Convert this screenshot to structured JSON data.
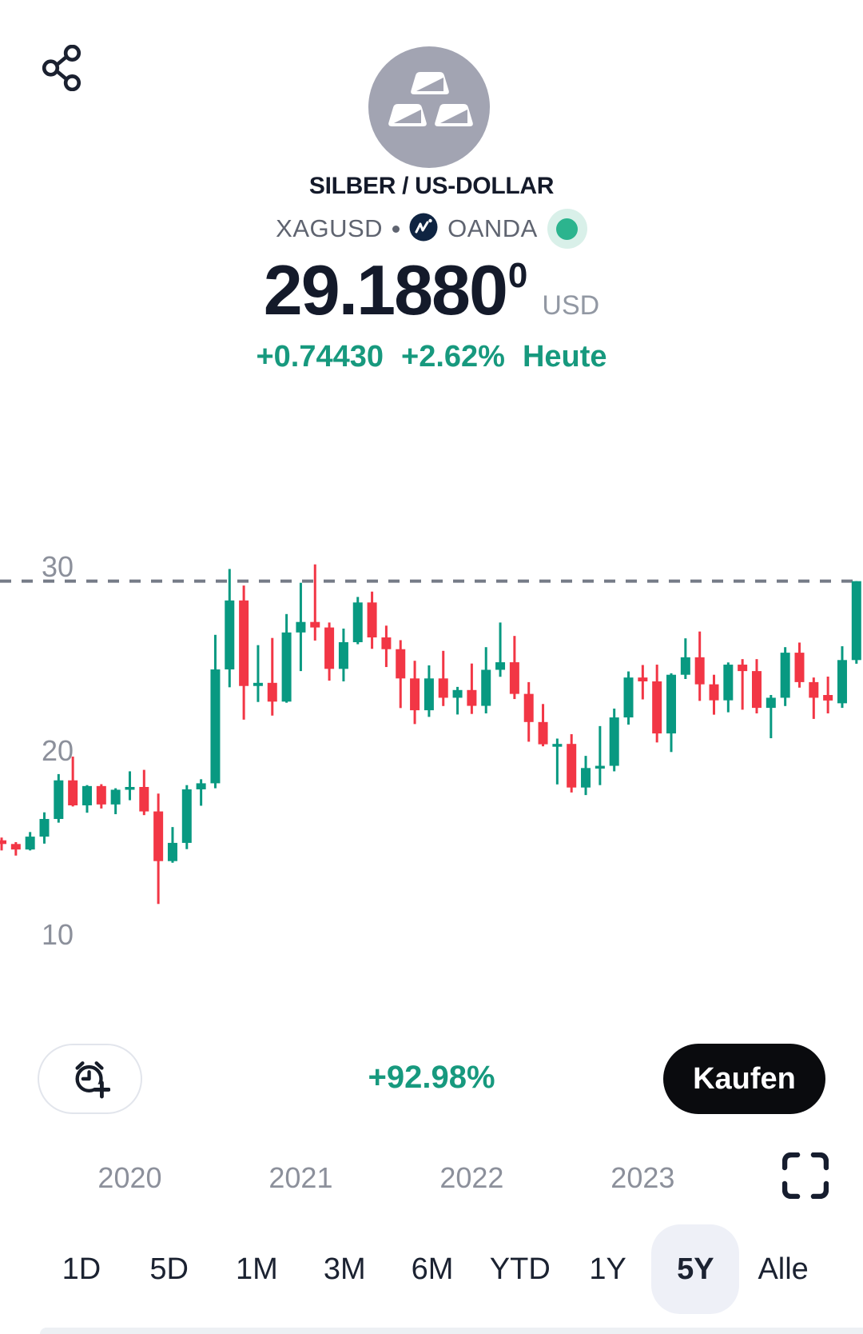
{
  "header": {
    "title": "SILBER / US-DOLLAR",
    "symbol": "XAGUSD",
    "separator": "•",
    "exchange": "OANDA",
    "price": "29.1880",
    "price_superscript": "0",
    "currency": "USD",
    "change_abs": "+0.74430",
    "change_pct": "+2.62%",
    "change_period": "Heute",
    "icons": {
      "share": "share-icon",
      "avatar": "silver-bars-icon",
      "exchange_logo": "oanda-logo-icon",
      "market_status": "market-open-dot"
    },
    "colors": {
      "title": "#141a2a",
      "symbol_gray": "#5f6470",
      "teal": "#17997e",
      "status_inner": "#2cb48e",
      "status_ring": "#d9f0e9",
      "avatar_bg": "#a2a4b2",
      "oanda_navy": "#0f2442"
    }
  },
  "chart_data": {
    "type": "candlestick",
    "title": "XAGUSD 5Y monthly candles",
    "ylabel": "",
    "xlabel": "",
    "y_axis_ticks": [
      30,
      20,
      10
    ],
    "ylim": [
      10,
      31
    ],
    "grid": "price-line-only",
    "price_line": 29.188,
    "colors": {
      "up": "#089981",
      "down": "#f23645",
      "axis_text": "#8c909b",
      "price_line": "#757b87"
    },
    "x_year_ticks": [
      {
        "label": "2020",
        "month_index": 9
      },
      {
        "label": "2021",
        "month_index": 21
      },
      {
        "label": "2022",
        "month_index": 33
      },
      {
        "label": "2023",
        "month_index": 45
      }
    ],
    "columns": [
      "month",
      "open",
      "high",
      "low",
      "close"
    ],
    "candles": [
      [
        "2019-04",
        15.1,
        15.25,
        14.55,
        14.9
      ],
      [
        "2019-05",
        14.9,
        15.0,
        14.27,
        14.6
      ],
      [
        "2019-06",
        14.6,
        15.55,
        14.55,
        15.3
      ],
      [
        "2019-07",
        15.3,
        16.62,
        14.92,
        16.26
      ],
      [
        "2019-08",
        16.26,
        18.7,
        16.06,
        18.36
      ],
      [
        "2019-09",
        18.36,
        19.65,
        16.94,
        17.0
      ],
      [
        "2019-10",
        17.0,
        18.1,
        16.6,
        18.05
      ],
      [
        "2019-11",
        18.05,
        18.15,
        16.83,
        17.05
      ],
      [
        "2019-12",
        17.05,
        17.93,
        16.52,
        17.85
      ],
      [
        "2020-01",
        17.85,
        18.85,
        17.28,
        18.0
      ],
      [
        "2020-02",
        18.0,
        18.93,
        16.47,
        16.67
      ],
      [
        "2020-03",
        16.67,
        17.64,
        11.64,
        13.97
      ],
      [
        "2020-04",
        13.97,
        15.82,
        13.88,
        14.96
      ],
      [
        "2020-05",
        14.96,
        18.1,
        14.62,
        17.87
      ],
      [
        "2020-06",
        17.87,
        18.42,
        16.98,
        18.2
      ],
      [
        "2020-07",
        18.2,
        26.27,
        17.93,
        24.39
      ],
      [
        "2020-08",
        24.39,
        29.85,
        23.42,
        28.14
      ],
      [
        "2020-09",
        28.14,
        28.95,
        21.66,
        23.49
      ],
      [
        "2020-10",
        23.49,
        25.71,
        22.62,
        23.66
      ],
      [
        "2020-11",
        23.66,
        26.1,
        21.88,
        22.64
      ],
      [
        "2020-12",
        22.64,
        27.4,
        22.58,
        26.4
      ],
      [
        "2021-01",
        26.4,
        29.1,
        24.3,
        26.97
      ],
      [
        "2021-02",
        26.97,
        30.1,
        25.96,
        26.67
      ],
      [
        "2021-03",
        26.67,
        26.94,
        23.78,
        24.42
      ],
      [
        "2021-04",
        24.42,
        26.61,
        23.74,
        25.87
      ],
      [
        "2021-05",
        25.87,
        28.33,
        25.76,
        28.03
      ],
      [
        "2021-06",
        28.03,
        28.62,
        25.51,
        26.13
      ],
      [
        "2021-07",
        26.13,
        26.77,
        24.52,
        25.49
      ],
      [
        "2021-08",
        25.49,
        25.98,
        22.29,
        23.9
      ],
      [
        "2021-09",
        23.9,
        24.86,
        21.42,
        22.17
      ],
      [
        "2021-10",
        22.17,
        24.61,
        21.81,
        23.9
      ],
      [
        "2021-11",
        23.9,
        25.4,
        22.4,
        22.85
      ],
      [
        "2021-12",
        22.85,
        23.44,
        21.94,
        23.27
      ],
      [
        "2022-01",
        23.27,
        24.71,
        21.97,
        22.41
      ],
      [
        "2022-02",
        22.41,
        25.6,
        22.0,
        24.37
      ],
      [
        "2022-03",
        24.37,
        26.94,
        23.99,
        24.78
      ],
      [
        "2022-04",
        24.78,
        26.21,
        22.78,
        23.06
      ],
      [
        "2022-05",
        23.06,
        23.7,
        20.46,
        21.53
      ],
      [
        "2022-06",
        21.53,
        22.51,
        20.21,
        20.32
      ],
      [
        "2022-07",
        20.32,
        20.63,
        18.14,
        20.34
      ],
      [
        "2022-08",
        20.34,
        20.87,
        17.7,
        17.97
      ],
      [
        "2022-09",
        17.97,
        19.69,
        17.56,
        19.03
      ],
      [
        "2022-10",
        19.03,
        21.31,
        18.1,
        19.15
      ],
      [
        "2022-11",
        19.15,
        22.26,
        18.85,
        21.78
      ],
      [
        "2022-12",
        21.78,
        24.28,
        21.39,
        23.95
      ],
      [
        "2023-01",
        23.95,
        24.63,
        22.76,
        23.74
      ],
      [
        "2023-02",
        23.74,
        24.65,
        20.42,
        20.91
      ],
      [
        "2023-03",
        20.91,
        24.18,
        19.9,
        24.1
      ],
      [
        "2023-04",
        24.1,
        26.08,
        23.87,
        25.05
      ],
      [
        "2023-05",
        25.05,
        26.45,
        22.68,
        23.58
      ],
      [
        "2023-06",
        23.58,
        24.1,
        21.93,
        22.71
      ],
      [
        "2023-07",
        22.71,
        24.77,
        22.06,
        24.65
      ],
      [
        "2023-08",
        24.65,
        24.95,
        22.2,
        24.3
      ],
      [
        "2023-09",
        24.3,
        24.95,
        22.0,
        22.3
      ],
      [
        "2023-10",
        22.3,
        23.0,
        20.65,
        22.85
      ],
      [
        "2023-11",
        22.85,
        25.6,
        22.4,
        25.3
      ],
      [
        "2023-12",
        25.3,
        25.85,
        23.4,
        23.7
      ],
      [
        "2024-01",
        23.7,
        23.95,
        21.7,
        22.85
      ],
      [
        "2024-02",
        23.0,
        24.0,
        22.0,
        22.7
      ],
      [
        "2024-03",
        22.55,
        25.65,
        22.3,
        24.9
      ],
      [
        "2024-04",
        24.9,
        29.19,
        24.7,
        29.188
      ]
    ]
  },
  "controls": {
    "alert_icon": "alarm-clock-plus-icon",
    "period_change": "+92.98%",
    "buy_label": "Kaufen",
    "fullscreen_icon": "fullscreen-icon"
  },
  "tabs": [
    {
      "label": "1D",
      "active": false
    },
    {
      "label": "5D",
      "active": false
    },
    {
      "label": "1M",
      "active": false
    },
    {
      "label": "3M",
      "active": false
    },
    {
      "label": "6M",
      "active": false
    },
    {
      "label": "YTD",
      "active": false
    },
    {
      "label": "1Y",
      "active": false
    },
    {
      "label": "5Y",
      "active": true
    },
    {
      "label": "Alle",
      "active": false
    }
  ]
}
